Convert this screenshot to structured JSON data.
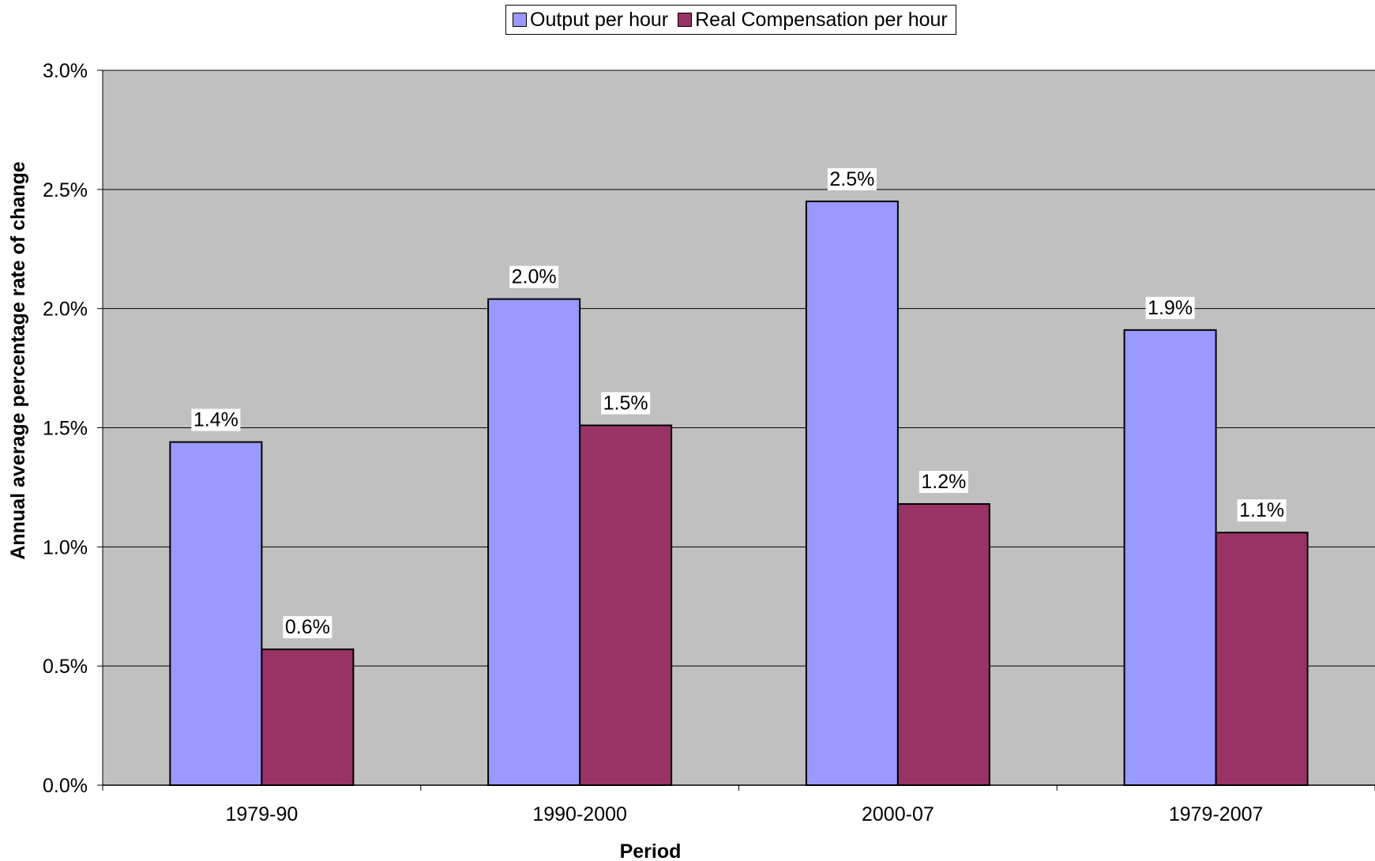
{
  "chart_data": {
    "type": "bar",
    "categories": [
      "1979-90",
      "1990-2000",
      "2000-07",
      "1979-2007"
    ],
    "series": [
      {
        "name": "Output per hour",
        "values": [
          1.44,
          2.04,
          2.45,
          1.91
        ],
        "labels": [
          "1.4%",
          "2.0%",
          "2.5%",
          "1.9%"
        ],
        "color": "#9999FF"
      },
      {
        "name": "Real Compensation per hour",
        "values": [
          0.57,
          1.51,
          1.18,
          1.06
        ],
        "labels": [
          "0.6%",
          "1.5%",
          "1.2%",
          "1.1%"
        ],
        "color": "#993366"
      }
    ],
    "title": "",
    "xlabel": "Period",
    "ylabel": "Annual average percentage rate of change",
    "ylim": [
      0,
      3.0
    ],
    "yticks": [
      0,
      0.5,
      1.0,
      1.5,
      2.0,
      2.5,
      3.0
    ],
    "ytick_labels": [
      "0.0%",
      "0.5%",
      "1.0%",
      "1.5%",
      "2.0%",
      "2.5%",
      "3.0%"
    ],
    "grid": true,
    "legend_position": "top-center",
    "plot_background": "#C0C0C0"
  }
}
